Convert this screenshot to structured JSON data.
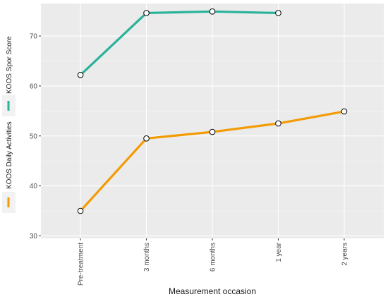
{
  "chart_data": {
    "type": "line",
    "title": "",
    "xlabel": "Measurement occasion",
    "ylabel": "",
    "categories": [
      "Pre-treatment",
      "3 months",
      "6 months",
      "1 year",
      "2 years"
    ],
    "ylim": [
      29.5,
      76.5
    ],
    "yticks": [
      30,
      40,
      50,
      60,
      70
    ],
    "grid": true,
    "legend_position": "left",
    "series": [
      {
        "name": "KOOS Daily Activities",
        "color": "#f29b05",
        "values": [
          35.0,
          49.5,
          50.8,
          52.5,
          54.9
        ]
      },
      {
        "name": "KOOS Spor Score",
        "color": "#2ab29a",
        "values": [
          62.2,
          74.6,
          74.9,
          74.6,
          null
        ]
      }
    ]
  }
}
